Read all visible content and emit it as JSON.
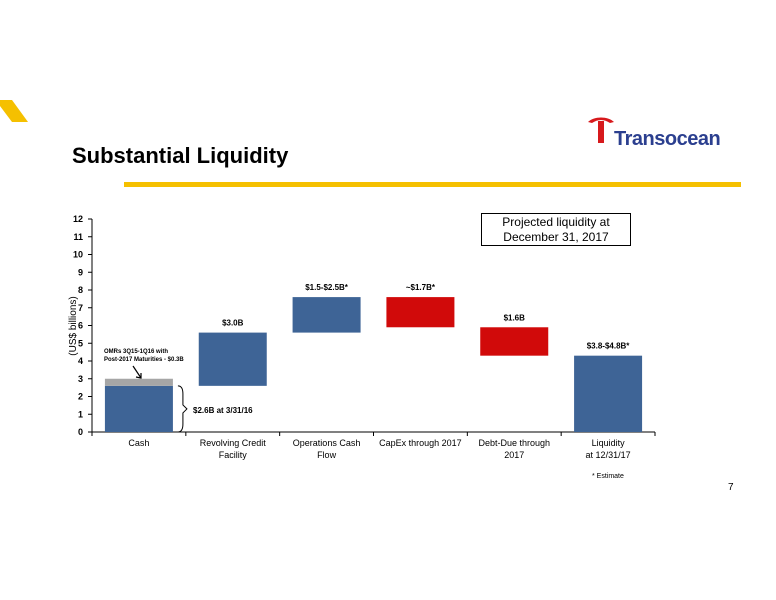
{
  "slide": {
    "title": "Substantial Liquidity",
    "logo_text": "Transocean",
    "page_number": "7",
    "callout_lines": [
      "Projected liquidity at",
      "December 31, 2017"
    ],
    "footnote": "* Estimate",
    "colors": {
      "accent": "#f5c000",
      "bar_blue": "#3e6496",
      "bar_red": "#d10a0a",
      "bar_gray": "#a6a6a6",
      "logo_blue": "#2b3f8f",
      "logo_red": "#d7191c"
    }
  },
  "chart_data": {
    "type": "bar",
    "subtype": "waterfall",
    "title": "",
    "ylabel": "(US$ billions)",
    "ylim": [
      0,
      12
    ],
    "yticks": [
      0,
      1,
      2,
      3,
      4,
      5,
      6,
      7,
      8,
      9,
      10,
      11,
      12
    ],
    "categories": [
      [
        "Cash"
      ],
      [
        "Revolving Credit",
        "Facility"
      ],
      [
        "Operations Cash",
        "Flow"
      ],
      [
        "CapEx through 2017"
      ],
      [
        "Debt-Due through",
        "2017"
      ],
      [
        "Liquidity",
        "at 12/31/17"
      ]
    ],
    "bars": [
      {
        "base": 0,
        "top": 2.6,
        "color": "blue",
        "label": ""
      },
      {
        "base": 2.6,
        "top": 5.6,
        "color": "blue",
        "label": "$3.0B"
      },
      {
        "base": 5.6,
        "top": 7.6,
        "color": "blue",
        "label": "$1.5-$2.5B*"
      },
      {
        "base": 5.9,
        "top": 7.6,
        "color": "red",
        "label": "~$1.7B*"
      },
      {
        "base": 4.3,
        "top": 5.9,
        "color": "red",
        "label": "$1.6B"
      },
      {
        "base": 0,
        "top": 4.3,
        "color": "blue",
        "label": "$3.8-$4.8B*"
      }
    ],
    "cash_overlay": {
      "base": 2.6,
      "top": 3.0,
      "color": "gray"
    },
    "annotations": {
      "omr_lines": [
        "OMRs 3Q15-1Q16 with",
        "Post-2017 Maturities - $0.3B"
      ],
      "cash_bracket": "$2.6B at 3/31/16"
    }
  }
}
